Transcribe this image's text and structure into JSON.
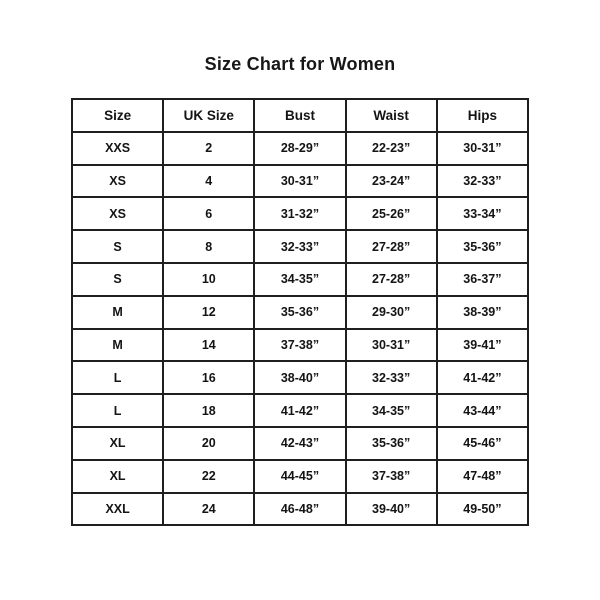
{
  "title": "Size Chart for Women",
  "table": {
    "columns": [
      "Size",
      "UK Size",
      "Bust",
      "Waist",
      "Hips"
    ],
    "rows": [
      [
        "XXS",
        "2",
        "28-29”",
        "22-23”",
        "30-31”"
      ],
      [
        "XS",
        "4",
        "30-31”",
        "23-24”",
        "32-33”"
      ],
      [
        "XS",
        "6",
        "31-32”",
        "25-26”",
        "33-34”"
      ],
      [
        "S",
        "8",
        "32-33”",
        "27-28”",
        "35-36”"
      ],
      [
        "S",
        "10",
        "34-35”",
        "27-28”",
        "36-37”"
      ],
      [
        "M",
        "12",
        "35-36”",
        "29-30”",
        "38-39”"
      ],
      [
        "M",
        "14",
        "37-38”",
        "30-31”",
        "39-41”"
      ],
      [
        "L",
        "16",
        "38-40”",
        "32-33”",
        "41-42”"
      ],
      [
        "L",
        "18",
        "41-42”",
        "34-35”",
        "43-44”"
      ],
      [
        "XL",
        "20",
        "42-43”",
        "35-36”",
        "45-46”"
      ],
      [
        "XL",
        "22",
        "44-45”",
        "37-38”",
        "47-48”"
      ],
      [
        "XXL",
        "24",
        "46-48”",
        "39-40”",
        "49-50”"
      ]
    ]
  },
  "colors": {
    "background": "#ffffff",
    "text": "#141414",
    "border": "#1f1f1f"
  }
}
